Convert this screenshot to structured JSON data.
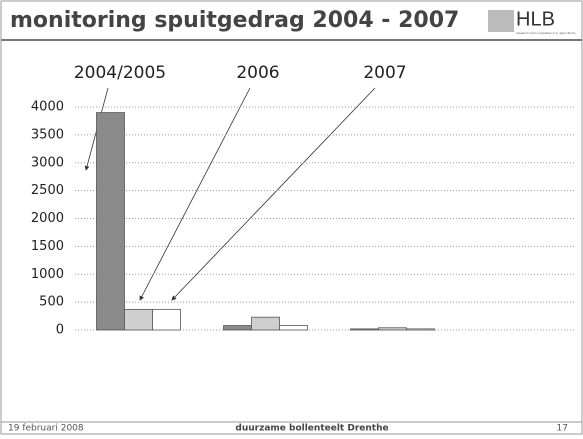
{
  "header": {
    "title": "monitoring spuitgedrag 2004 - 2007",
    "logo": "HLB",
    "logo_tagline": "research and consultancy in agriculture"
  },
  "chart_data": {
    "type": "bar",
    "categories": [
      null,
      null,
      null
    ],
    "series": [
      {
        "name": "2004/2005",
        "color": "#8a8a8a",
        "values": [
          3900,
          80,
          20
        ]
      },
      {
        "name": "2006",
        "color": "#cfcfcf",
        "values": [
          370,
          230,
          40
        ]
      },
      {
        "name": "2007",
        "color": "#ffffff",
        "values": [
          370,
          80,
          20
        ]
      }
    ],
    "ylim": [
      0,
      4000
    ],
    "yticks": [
      0,
      500,
      1000,
      1500,
      2000,
      2500,
      3000,
      3500,
      4000
    ],
    "grid": true
  },
  "footer": {
    "date": "19 februari 2008",
    "center": "duurzame bollenteelt Drenthe",
    "page": "17"
  }
}
